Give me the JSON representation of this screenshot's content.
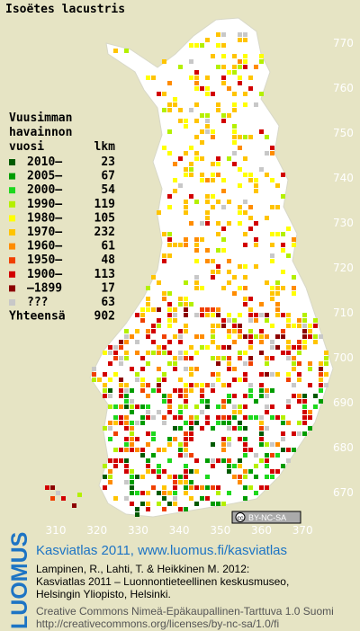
{
  "title": "Isoëtes lacustris",
  "legend": {
    "heading": [
      "Vuusimman",
      "havainnon",
      "vuosi"
    ],
    "count_header": "lkm",
    "items": [
      {
        "label": "2010–",
        "count": 23,
        "color": "#005a00"
      },
      {
        "label": "2005–",
        "count": 67,
        "color": "#009c00"
      },
      {
        "label": "2000–",
        "count": 54,
        "color": "#1ed81e"
      },
      {
        "label": "1990–",
        "count": 119,
        "color": "#b4f000"
      },
      {
        "label": "1980–",
        "count": 105,
        "color": "#ffff00"
      },
      {
        "label": "1970–",
        "count": 232,
        "color": "#ffc400"
      },
      {
        "label": "1960–",
        "count": 61,
        "color": "#ff8c00"
      },
      {
        "label": "1950–",
        "count": 48,
        "color": "#f04000"
      },
      {
        "label": "1900–",
        "count": 113,
        "color": "#d20000"
      },
      {
        "label": "–1899",
        "count": 17,
        "color": "#8c0000"
      },
      {
        "label": "???",
        "count": 63,
        "color": "#c8c8c8"
      }
    ],
    "total_label": "Yhteensä",
    "total": 902
  },
  "axes": {
    "x_labels": [
      310,
      320,
      330,
      340,
      350,
      360,
      370
    ],
    "y_labels": [
      770,
      760,
      750,
      740,
      730,
      720,
      710,
      700,
      690,
      680,
      670
    ]
  },
  "license_badge": {
    "icon": "cc",
    "text": "BY-NC-SA"
  },
  "credits": {
    "brand": "LUOMUS",
    "headline": "Kasviatlas 2011, www.luomus.fi/kasviatlas",
    "citation": [
      "Lampinen, R., Lahti, T. & Heikkinen M. 2012:",
      "Kasviatlas 2011 – Luonnontieteellinen keskusmuseo,",
      "Helsingin Yliopisto, Helsinki."
    ],
    "license": [
      "Creative Commons Nimeä-Epäkaupallinen-Tarttuva 1.0 Suomi",
      "http://creativecommons.org/licenses/by-nc-sa/1.0/fi"
    ]
  }
}
